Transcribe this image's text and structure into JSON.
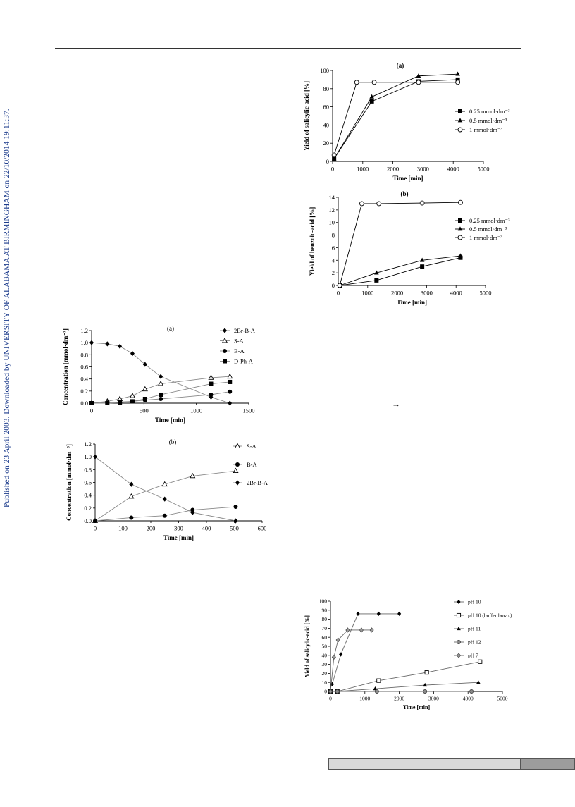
{
  "side_note": "Published on 23 April 2003. Downloaded by UNIVERSITY OF ALABAMA AT BIRMINGHAM on 22/10/2014 19:11:37.",
  "arrow": "→",
  "chart_data": [
    {
      "id": "salicylic-a",
      "type": "line",
      "title": "(a)",
      "xlabel": "Time [min]",
      "ylabel": "Yield of salicylic-acid [%]",
      "xlim": [
        0,
        5000
      ],
      "ylim": [
        0,
        100
      ],
      "xticks": [
        0,
        1000,
        2000,
        3000,
        4000,
        5000
      ],
      "yticks": [
        0,
        20,
        40,
        60,
        80,
        100
      ],
      "grid": false,
      "legend": "right",
      "series": [
        {
          "name": "0.25 mmol·dm⁻³",
          "marker": "square-filled",
          "x": [
            50,
            1300,
            2850,
            4150
          ],
          "y": [
            3,
            66,
            88,
            90
          ]
        },
        {
          "name": "0.5 mmol·dm⁻³",
          "marker": "triangle-filled",
          "x": [
            50,
            1300,
            2850,
            4150
          ],
          "y": [
            3,
            71,
            94,
            96
          ]
        },
        {
          "name": "1 mmol·dm⁻³",
          "marker": "circle-open",
          "x": [
            50,
            800,
            1380,
            2850,
            4150
          ],
          "y": [
            7,
            87,
            87,
            87,
            87
          ]
        }
      ]
    },
    {
      "id": "benzoic-b",
      "type": "line",
      "title": "(b)",
      "xlabel": "Time [min]",
      "ylabel": "Yield of benzoic-acid [%]",
      "xlim": [
        0,
        5000
      ],
      "ylim": [
        0,
        14
      ],
      "xticks": [
        0,
        1000,
        2000,
        3000,
        4000,
        5000
      ],
      "yticks": [
        0,
        2,
        4,
        6,
        8,
        10,
        12,
        14
      ],
      "grid": false,
      "legend": "right",
      "series": [
        {
          "name": "0.25 mmol·dm⁻³",
          "marker": "square-filled",
          "x": [
            50,
            1300,
            2850,
            4150
          ],
          "y": [
            0,
            0.8,
            3,
            4.4
          ]
        },
        {
          "name": "0.5 mmol·dm⁻³",
          "marker": "triangle-filled",
          "x": [
            50,
            1300,
            2850,
            4150
          ],
          "y": [
            0,
            2,
            4,
            4.7
          ]
        },
        {
          "name": "1 mmol·dm⁻³",
          "marker": "circle-open",
          "x": [
            50,
            800,
            1380,
            2850,
            4150
          ],
          "y": [
            0,
            13,
            13,
            13.1,
            13.2
          ]
        }
      ]
    },
    {
      "id": "conc-a",
      "type": "line",
      "title": "(a)",
      "xlabel": "Time [min]",
      "ylabel": "Concentration [mmol·dm⁻³]",
      "xlim": [
        0,
        1500
      ],
      "ylim": [
        0,
        1.2
      ],
      "xticks": [
        0,
        500,
        1000,
        1500
      ],
      "yticks": [
        0.0,
        0.2,
        0.4,
        0.6,
        0.8,
        1.0,
        1.2
      ],
      "ytick_decimals": 1,
      "grid": false,
      "legend": "right",
      "series": [
        {
          "name": "2Br-B-A",
          "marker": "diamond-filled",
          "x": [
            0,
            150,
            270,
            390,
            510,
            660,
            1140,
            1320
          ],
          "y": [
            1.0,
            0.98,
            0.94,
            0.82,
            0.64,
            0.44,
            0.1,
            0.0
          ]
        },
        {
          "name": "S-A",
          "marker": "triangle-open",
          "x": [
            0,
            150,
            270,
            390,
            510,
            660,
            1140,
            1320
          ],
          "y": [
            0.0,
            0.03,
            0.07,
            0.12,
            0.23,
            0.32,
            0.42,
            0.44
          ]
        },
        {
          "name": "B-A",
          "marker": "circle-filled",
          "x": [
            0,
            150,
            270,
            390,
            510,
            660,
            1140,
            1320
          ],
          "y": [
            0.0,
            0.01,
            0.02,
            0.03,
            0.05,
            0.07,
            0.14,
            0.19
          ]
        },
        {
          "name": "D-Ph-A",
          "marker": "square-filled",
          "x": [
            0,
            150,
            270,
            390,
            510,
            660,
            1140,
            1320
          ],
          "y": [
            0.0,
            0.0,
            0.01,
            0.03,
            0.07,
            0.14,
            0.32,
            0.35
          ]
        }
      ]
    },
    {
      "id": "conc-b",
      "type": "line",
      "title": "(b)",
      "xlabel": "Time [min]",
      "ylabel": "Concentration [mmol·dm⁻³]",
      "xlim": [
        0,
        600
      ],
      "ylim": [
        0,
        1.2
      ],
      "xticks": [
        0,
        100,
        200,
        300,
        400,
        500,
        600
      ],
      "yticks": [
        0.0,
        0.2,
        0.4,
        0.6,
        0.8,
        1.0,
        1.2
      ],
      "ytick_decimals": 1,
      "grid": false,
      "legend": "right",
      "series": [
        {
          "name": "S-A",
          "marker": "triangle-open",
          "x": [
            0,
            130,
            250,
            350,
            505
          ],
          "y": [
            0.0,
            0.38,
            0.57,
            0.7,
            0.78
          ]
        },
        {
          "name": "B-A",
          "marker": "circle-filled",
          "x": [
            0,
            130,
            250,
            350,
            505
          ],
          "y": [
            0.0,
            0.05,
            0.08,
            0.17,
            0.22
          ]
        },
        {
          "name": "2Br-B-A",
          "marker": "diamond-filled",
          "x": [
            0,
            130,
            250,
            350,
            505
          ],
          "y": [
            1.0,
            0.57,
            0.34,
            0.13,
            0.0
          ]
        }
      ]
    },
    {
      "id": "ph",
      "type": "line",
      "title": "",
      "xlabel": "Time [min]",
      "ylabel": "Yield of salicylic-acid [%]",
      "xlim": [
        0,
        5000
      ],
      "ylim": [
        0,
        100
      ],
      "xticks": [
        0,
        1000,
        2000,
        3000,
        4000,
        5000
      ],
      "yticks": [
        0,
        10,
        20,
        30,
        40,
        50,
        60,
        70,
        80,
        90,
        100
      ],
      "grid": false,
      "legend": "right",
      "series": [
        {
          "name": "pH 10",
          "marker": "diamond-filled",
          "x": [
            50,
            300,
            800,
            1400,
            2000
          ],
          "y": [
            8,
            41,
            86,
            86,
            86
          ]
        },
        {
          "name": "pH 10 (buffer borax)",
          "marker": "square-open",
          "x": [
            0,
            200,
            1400,
            2800,
            4350
          ],
          "y": [
            0,
            0,
            12,
            21,
            33
          ]
        },
        {
          "name": "pH 11",
          "marker": "triangle-filled",
          "x": [
            0,
            200,
            1300,
            2750,
            4300
          ],
          "y": [
            0,
            0,
            3,
            7,
            10
          ]
        },
        {
          "name": "pH 12",
          "marker": "circle-gray",
          "x": [
            0,
            200,
            1350,
            2750,
            4100
          ],
          "y": [
            0,
            0,
            0,
            0,
            0
          ]
        },
        {
          "name": "pH 7",
          "marker": "diamond-gray",
          "x": [
            0,
            100,
            220,
            500,
            900,
            1200
          ],
          "y": [
            0,
            38,
            57,
            68,
            68,
            68
          ]
        }
      ]
    }
  ]
}
